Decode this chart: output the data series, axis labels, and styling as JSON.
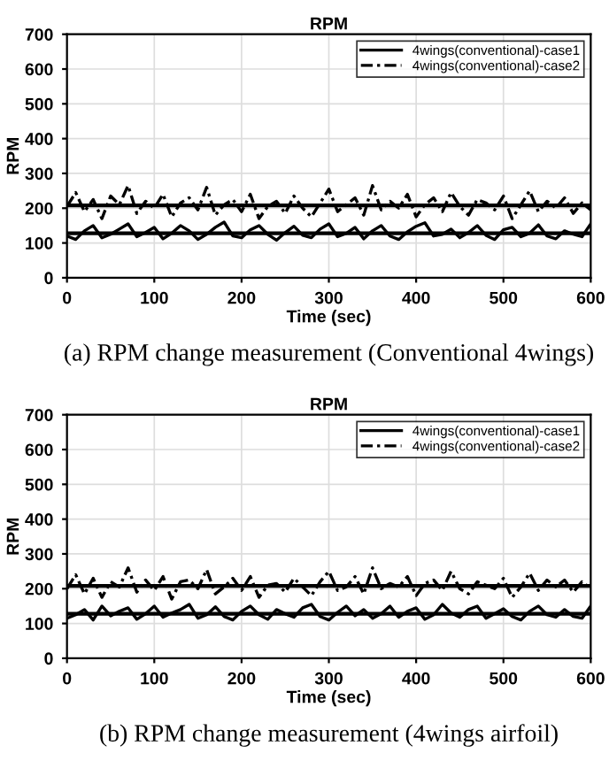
{
  "chart_data": [
    {
      "type": "line",
      "title": "RPM",
      "xlabel": "Time (sec)",
      "ylabel": "RPM",
      "x": [
        0,
        10,
        20,
        30,
        40,
        50,
        60,
        70,
        80,
        90,
        100,
        110,
        120,
        130,
        140,
        150,
        160,
        170,
        180,
        190,
        200,
        210,
        220,
        230,
        240,
        250,
        260,
        270,
        280,
        290,
        300,
        310,
        320,
        330,
        340,
        350,
        360,
        370,
        380,
        390,
        400,
        410,
        420,
        430,
        440,
        450,
        460,
        470,
        480,
        490,
        500,
        510,
        520,
        530,
        540,
        550,
        560,
        570,
        580,
        590,
        600
      ],
      "series": [
        {
          "name": "4wings(conventional)-case1",
          "color": "#000000",
          "line_style": "solid",
          "values": [
            120,
            110,
            135,
            150,
            115,
            125,
            140,
            155,
            118,
            130,
            145,
            112,
            128,
            150,
            135,
            110,
            125,
            145,
            160,
            120,
            115,
            138,
            150,
            125,
            108,
            130,
            148,
            122,
            115,
            140,
            155,
            118,
            128,
            145,
            112,
            135,
            150,
            120,
            110,
            132,
            148,
            158,
            120,
            125,
            140,
            115,
            130,
            150,
            122,
            110,
            138,
            145,
            118,
            128,
            152,
            120,
            112,
            135,
            125,
            118,
            155
          ]
        },
        {
          "name": "4wings(conventional)-case2",
          "color": "#000000",
          "line_style": "dashed",
          "values": [
            205,
            245,
            190,
            225,
            170,
            235,
            210,
            265,
            185,
            220,
            200,
            240,
            175,
            215,
            230,
            195,
            260,
            180,
            210,
            225,
            190,
            240,
            170,
            205,
            220,
            185,
            235,
            200,
            175,
            215,
            255,
            190,
            210,
            230,
            180,
            265,
            195,
            220,
            200,
            240,
            175,
            210,
            230,
            190,
            245,
            205,
            180,
            225,
            215,
            195,
            235,
            170,
            210,
            250,
            190,
            220,
            200,
            230,
            185,
            215,
            195
          ]
        }
      ],
      "ref_lines": [
        {
          "axis": "y",
          "value": 128,
          "color": "#000000"
        },
        {
          "axis": "y",
          "value": 208,
          "color": "#000000"
        }
      ],
      "xlim": [
        0,
        600
      ],
      "xticks": [
        0,
        100,
        200,
        300,
        400,
        500,
        600
      ],
      "ylim": [
        0,
        700
      ],
      "yticks": [
        0,
        100,
        200,
        300,
        400,
        500,
        600,
        700
      ],
      "grid": true,
      "legend": "top right",
      "marker": "none",
      "annotations": [
        "(a) RPM change measurement (Conventional 4wings)"
      ]
    },
    {
      "type": "line",
      "title": "RPM",
      "xlabel": "Time (sec)",
      "ylabel": "RPM",
      "x": [
        0,
        10,
        20,
        30,
        40,
        50,
        60,
        70,
        80,
        90,
        100,
        110,
        120,
        130,
        140,
        150,
        160,
        170,
        180,
        190,
        200,
        210,
        220,
        230,
        240,
        250,
        260,
        270,
        280,
        290,
        300,
        310,
        320,
        330,
        340,
        350,
        360,
        370,
        380,
        390,
        400,
        410,
        420,
        430,
        440,
        450,
        460,
        470,
        480,
        490,
        500,
        510,
        520,
        530,
        540,
        550,
        560,
        570,
        580,
        590,
        600
      ],
      "series": [
        {
          "name": "4wings(conventional)-case1",
          "color": "#000000",
          "line_style": "solid",
          "values": [
            115,
            125,
            140,
            110,
            150,
            122,
            135,
            145,
            112,
            128,
            150,
            118,
            130,
            140,
            155,
            115,
            125,
            148,
            120,
            110,
            135,
            150,
            125,
            112,
            140,
            128,
            118,
            145,
            155,
            120,
            110,
            132,
            150,
            122,
            140,
            115,
            128,
            150,
            118,
            135,
            145,
            112,
            125,
            155,
            130,
            118,
            140,
            150,
            115,
            128,
            142,
            120,
            110,
            135,
            150,
            125,
            118,
            140,
            120,
            115,
            150
          ]
        },
        {
          "name": "4wings(conventional)-case2",
          "color": "#000000",
          "line_style": "dashed",
          "values": [
            200,
            240,
            185,
            230,
            175,
            220,
            205,
            260,
            190,
            225,
            195,
            235,
            170,
            220,
            225,
            200,
            255,
            185,
            205,
            230,
            195,
            235,
            175,
            210,
            215,
            190,
            230,
            205,
            180,
            220,
            250,
            195,
            205,
            235,
            185,
            260,
            200,
            215,
            205,
            235,
            180,
            215,
            225,
            195,
            250,
            200,
            185,
            220,
            210,
            200,
            230,
            175,
            205,
            245,
            195,
            225,
            205,
            225,
            190,
            220,
            200
          ]
        }
      ],
      "ref_lines": [
        {
          "axis": "y",
          "value": 128,
          "color": "#000000"
        },
        {
          "axis": "y",
          "value": 208,
          "color": "#000000"
        }
      ],
      "xlim": [
        0,
        600
      ],
      "xticks": [
        0,
        100,
        200,
        300,
        400,
        500,
        600
      ],
      "ylim": [
        0,
        700
      ],
      "yticks": [
        0,
        100,
        200,
        300,
        400,
        500,
        600,
        700
      ],
      "grid": true,
      "legend": "top right",
      "marker": "none",
      "annotations": [
        "(b) RPM change measurement (4wings airfoil)"
      ]
    }
  ]
}
